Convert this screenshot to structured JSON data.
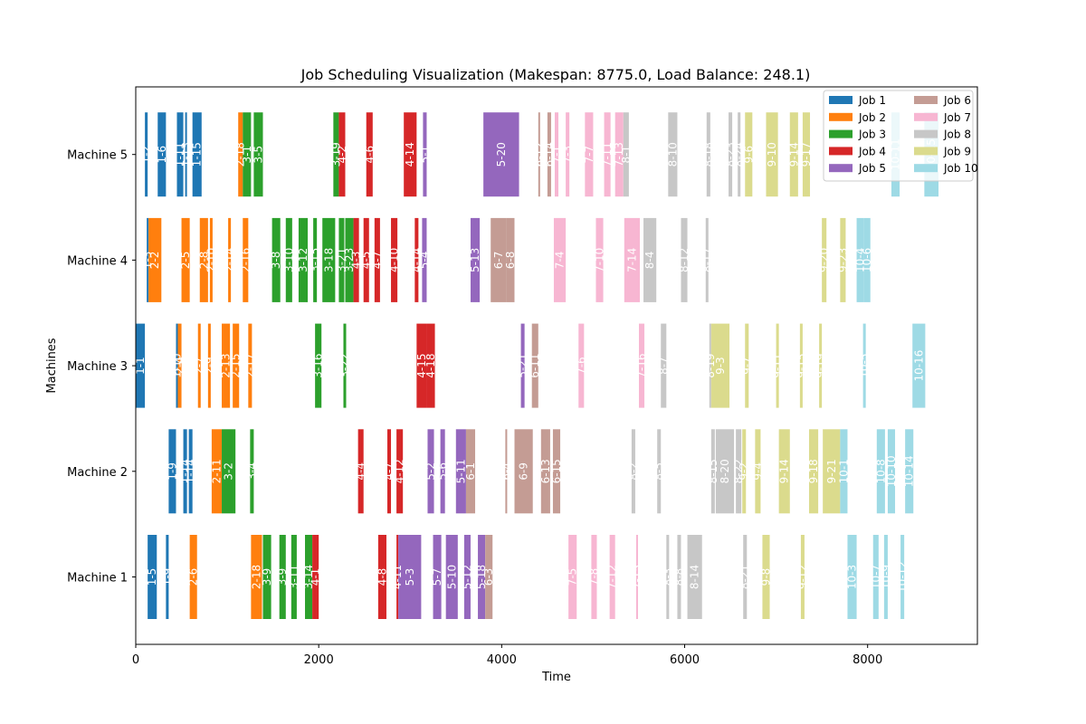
{
  "chart_data": {
    "type": "gantt",
    "title": "Job Scheduling Visualization (Makespan: 8775.0, Load Balance: 248.1)",
    "xlabel": "Time",
    "ylabel": "Machines",
    "xlim": [
      0,
      9200
    ],
    "x_ticks": [
      0,
      2000,
      4000,
      6000,
      8000
    ],
    "machines": [
      "Machine 1",
      "Machine 2",
      "Machine 3",
      "Machine 4",
      "Machine 5"
    ],
    "legend": {
      "placement": "top-right",
      "columns": 2,
      "entries": [
        "Job 1",
        "Job 2",
        "Job 3",
        "Job 4",
        "Job 5",
        "Job 6",
        "Job 7",
        "Job 8",
        "Job 9",
        "Job 10"
      ]
    },
    "job_colors": {
      "1": "#1f77b4",
      "2": "#ff7f0e",
      "3": "#2ca02c",
      "4": "#d62728",
      "5": "#9467bd",
      "6": "#c49c94",
      "7": "#f7b6d2",
      "8": "#c7c7c7",
      "9": "#dbdb8d",
      "10": "#9edae5"
    },
    "tasks": [
      {
        "machine": 1,
        "job": 1,
        "start": 130,
        "end": 230,
        "label": "1-5"
      },
      {
        "machine": 1,
        "job": 1,
        "start": 330,
        "end": 360,
        "label": "1-9"
      },
      {
        "machine": 1,
        "job": 2,
        "start": 590,
        "end": 670,
        "label": "2-6"
      },
      {
        "machine": 1,
        "job": 2,
        "start": 1260,
        "end": 1380,
        "label": "2-18"
      },
      {
        "machine": 1,
        "job": 3,
        "start": 1390,
        "end": 1480,
        "label": "3-9"
      },
      {
        "machine": 1,
        "job": 3,
        "start": 1570,
        "end": 1640,
        "label": "3-9"
      },
      {
        "machine": 1,
        "job": 3,
        "start": 1700,
        "end": 1760,
        "label": "3-11"
      },
      {
        "machine": 1,
        "job": 3,
        "start": 1850,
        "end": 1930,
        "label": "3-14"
      },
      {
        "machine": 1,
        "job": 4,
        "start": 1930,
        "end": 2000,
        "label": "4-1"
      },
      {
        "machine": 1,
        "job": 4,
        "start": 2650,
        "end": 2740,
        "label": "4-8"
      },
      {
        "machine": 1,
        "job": 4,
        "start": 2850,
        "end": 2870,
        "label": "4-11"
      },
      {
        "machine": 1,
        "job": 5,
        "start": 2870,
        "end": 3120,
        "label": "5-3"
      },
      {
        "machine": 1,
        "job": 5,
        "start": 3250,
        "end": 3340,
        "label": "5-7"
      },
      {
        "machine": 1,
        "job": 5,
        "start": 3390,
        "end": 3520,
        "label": "5-10"
      },
      {
        "machine": 1,
        "job": 5,
        "start": 3590,
        "end": 3660,
        "label": "5-12"
      },
      {
        "machine": 1,
        "job": 5,
        "start": 3740,
        "end": 3820,
        "label": "5-18"
      },
      {
        "machine": 1,
        "job": 6,
        "start": 3820,
        "end": 3900,
        "label": "6-3"
      },
      {
        "machine": 1,
        "job": 7,
        "start": 4730,
        "end": 4820,
        "label": "7-5"
      },
      {
        "machine": 1,
        "job": 7,
        "start": 4980,
        "end": 5040,
        "label": "7-8"
      },
      {
        "machine": 1,
        "job": 7,
        "start": 5180,
        "end": 5240,
        "label": "7-12"
      },
      {
        "machine": 1,
        "job": 7,
        "start": 5470,
        "end": 5490,
        "label": "7-15"
      },
      {
        "machine": 1,
        "job": 8,
        "start": 5800,
        "end": 5830,
        "label": "8-3"
      },
      {
        "machine": 1,
        "job": 8,
        "start": 5920,
        "end": 5960,
        "label": "8-8"
      },
      {
        "machine": 1,
        "job": 8,
        "start": 6030,
        "end": 6190,
        "label": "8-14"
      },
      {
        "machine": 1,
        "job": 8,
        "start": 6640,
        "end": 6680,
        "label": "8-21"
      },
      {
        "machine": 1,
        "job": 9,
        "start": 6850,
        "end": 6930,
        "label": "9-8"
      },
      {
        "machine": 1,
        "job": 9,
        "start": 7270,
        "end": 7310,
        "label": "9-12"
      },
      {
        "machine": 1,
        "job": 10,
        "start": 7780,
        "end": 7880,
        "label": "10-3"
      },
      {
        "machine": 1,
        "job": 10,
        "start": 8060,
        "end": 8120,
        "label": "10-7"
      },
      {
        "machine": 1,
        "job": 10,
        "start": 8180,
        "end": 8220,
        "label": "10-9"
      },
      {
        "machine": 1,
        "job": 10,
        "start": 8360,
        "end": 8400,
        "label": "10-12"
      },
      {
        "machine": 2,
        "job": 1,
        "start": 360,
        "end": 440,
        "label": "1-9"
      },
      {
        "machine": 2,
        "job": 1,
        "start": 520,
        "end": 560,
        "label": "1-14"
      },
      {
        "machine": 2,
        "job": 1,
        "start": 580,
        "end": 620,
        "label": "1-14"
      },
      {
        "machine": 2,
        "job": 2,
        "start": 830,
        "end": 940,
        "label": "2-11"
      },
      {
        "machine": 2,
        "job": 3,
        "start": 940,
        "end": 1090,
        "label": "3-2"
      },
      {
        "machine": 2,
        "job": 3,
        "start": 1250,
        "end": 1290,
        "label": "3-4"
      },
      {
        "machine": 2,
        "job": 4,
        "start": 2430,
        "end": 2490,
        "label": "4-4"
      },
      {
        "machine": 2,
        "job": 4,
        "start": 2750,
        "end": 2790,
        "label": "4-7"
      },
      {
        "machine": 2,
        "job": 4,
        "start": 2850,
        "end": 2920,
        "label": "4-12"
      },
      {
        "machine": 2,
        "job": 5,
        "start": 3190,
        "end": 3260,
        "label": "5-2"
      },
      {
        "machine": 2,
        "job": 5,
        "start": 3330,
        "end": 3380,
        "label": "5-6"
      },
      {
        "machine": 2,
        "job": 5,
        "start": 3500,
        "end": 3610,
        "label": "5-11"
      },
      {
        "machine": 2,
        "job": 6,
        "start": 3610,
        "end": 3710,
        "label": "6-1"
      },
      {
        "machine": 2,
        "job": 6,
        "start": 4040,
        "end": 4060,
        "label": "6-4"
      },
      {
        "machine": 2,
        "job": 6,
        "start": 4140,
        "end": 4340,
        "label": "6-9"
      },
      {
        "machine": 2,
        "job": 6,
        "start": 4430,
        "end": 4530,
        "label": "6-13"
      },
      {
        "machine": 2,
        "job": 6,
        "start": 4560,
        "end": 4640,
        "label": "6-15"
      },
      {
        "machine": 2,
        "job": 8,
        "start": 5420,
        "end": 5460,
        "label": "8-2"
      },
      {
        "machine": 2,
        "job": 8,
        "start": 5700,
        "end": 5740,
        "label": "8-5"
      },
      {
        "machine": 2,
        "job": 8,
        "start": 6290,
        "end": 6330,
        "label": "8-15"
      },
      {
        "machine": 2,
        "job": 8,
        "start": 6340,
        "end": 6540,
        "label": "8-20"
      },
      {
        "machine": 2,
        "job": 8,
        "start": 6560,
        "end": 6620,
        "label": "8-22"
      },
      {
        "machine": 2,
        "job": 9,
        "start": 6630,
        "end": 6670,
        "label": "9-2"
      },
      {
        "machine": 2,
        "job": 9,
        "start": 6770,
        "end": 6830,
        "label": "9-4"
      },
      {
        "machine": 2,
        "job": 9,
        "start": 7030,
        "end": 7150,
        "label": "9-14"
      },
      {
        "machine": 2,
        "job": 9,
        "start": 7360,
        "end": 7460,
        "label": "9-18"
      },
      {
        "machine": 2,
        "job": 9,
        "start": 7510,
        "end": 7700,
        "label": "9-21"
      },
      {
        "machine": 2,
        "job": 10,
        "start": 7700,
        "end": 7780,
        "label": "10-1"
      },
      {
        "machine": 2,
        "job": 10,
        "start": 8100,
        "end": 8190,
        "label": "10-8"
      },
      {
        "machine": 2,
        "job": 10,
        "start": 8220,
        "end": 8300,
        "label": "10-10"
      },
      {
        "machine": 2,
        "job": 10,
        "start": 8410,
        "end": 8500,
        "label": "10-14"
      },
      {
        "machine": 3,
        "job": 1,
        "start": 0,
        "end": 100,
        "label": "1-1"
      },
      {
        "machine": 3,
        "job": 1,
        "start": 440,
        "end": 460,
        "label": "1-10"
      },
      {
        "machine": 3,
        "job": 2,
        "start": 460,
        "end": 500,
        "label": "2-4"
      },
      {
        "machine": 3,
        "job": 2,
        "start": 680,
        "end": 710,
        "label": "2-7"
      },
      {
        "machine": 3,
        "job": 2,
        "start": 790,
        "end": 820,
        "label": "2-9"
      },
      {
        "machine": 3,
        "job": 2,
        "start": 940,
        "end": 1030,
        "label": "2-13"
      },
      {
        "machine": 3,
        "job": 2,
        "start": 1060,
        "end": 1130,
        "label": "2-15"
      },
      {
        "machine": 3,
        "job": 2,
        "start": 1230,
        "end": 1270,
        "label": "2-17"
      },
      {
        "machine": 3,
        "job": 3,
        "start": 1960,
        "end": 2030,
        "label": "3-16"
      },
      {
        "machine": 3,
        "job": 3,
        "start": 2270,
        "end": 2300,
        "label": "3-22"
      },
      {
        "machine": 3,
        "job": 4,
        "start": 3070,
        "end": 3180,
        "label": "4-15"
      },
      {
        "machine": 3,
        "job": 4,
        "start": 3180,
        "end": 3270,
        "label": "4-18"
      },
      {
        "machine": 3,
        "job": 5,
        "start": 4210,
        "end": 4250,
        "label": "5-21"
      },
      {
        "machine": 3,
        "job": 6,
        "start": 4330,
        "end": 4400,
        "label": "6-11"
      },
      {
        "machine": 3,
        "job": 7,
        "start": 4840,
        "end": 4900,
        "label": "7-6"
      },
      {
        "machine": 3,
        "job": 7,
        "start": 5500,
        "end": 5560,
        "label": "7-16"
      },
      {
        "machine": 3,
        "job": 8,
        "start": 5740,
        "end": 5800,
        "label": "8-7"
      },
      {
        "machine": 3,
        "job": 8,
        "start": 6270,
        "end": 6290,
        "label": "8-19"
      },
      {
        "machine": 3,
        "job": 9,
        "start": 6290,
        "end": 6490,
        "label": "9-3"
      },
      {
        "machine": 3,
        "job": 9,
        "start": 6660,
        "end": 6700,
        "label": "9-7"
      },
      {
        "machine": 3,
        "job": 9,
        "start": 7000,
        "end": 7030,
        "label": "9-11"
      },
      {
        "machine": 3,
        "job": 9,
        "start": 7260,
        "end": 7290,
        "label": "9-15"
      },
      {
        "machine": 3,
        "job": 9,
        "start": 7470,
        "end": 7500,
        "label": "9-19"
      },
      {
        "machine": 3,
        "job": 10,
        "start": 7950,
        "end": 7980,
        "label": "10-5"
      },
      {
        "machine": 3,
        "job": 10,
        "start": 8490,
        "end": 8630,
        "label": "10-16"
      },
      {
        "machine": 4,
        "job": 1,
        "start": 120,
        "end": 140,
        "label": "1-3"
      },
      {
        "machine": 4,
        "job": 2,
        "start": 140,
        "end": 280,
        "label": "2-2"
      },
      {
        "machine": 4,
        "job": 2,
        "start": 500,
        "end": 590,
        "label": "2-5"
      },
      {
        "machine": 4,
        "job": 2,
        "start": 700,
        "end": 790,
        "label": "2-8"
      },
      {
        "machine": 4,
        "job": 2,
        "start": 810,
        "end": 840,
        "label": "2-10"
      },
      {
        "machine": 4,
        "job": 2,
        "start": 1010,
        "end": 1040,
        "label": "2-14"
      },
      {
        "machine": 4,
        "job": 2,
        "start": 1170,
        "end": 1230,
        "label": "2-16"
      },
      {
        "machine": 4,
        "job": 3,
        "start": 1490,
        "end": 1580,
        "label": "3-8"
      },
      {
        "machine": 4,
        "job": 3,
        "start": 1640,
        "end": 1710,
        "label": "3-10"
      },
      {
        "machine": 4,
        "job": 3,
        "start": 1780,
        "end": 1880,
        "label": "3-12"
      },
      {
        "machine": 4,
        "job": 3,
        "start": 1940,
        "end": 1980,
        "label": "3-15"
      },
      {
        "machine": 4,
        "job": 3,
        "start": 2040,
        "end": 2180,
        "label": "3-18"
      },
      {
        "machine": 4,
        "job": 3,
        "start": 2220,
        "end": 2280,
        "label": "3-21"
      },
      {
        "machine": 4,
        "job": 3,
        "start": 2290,
        "end": 2380,
        "label": "3-23"
      },
      {
        "machine": 4,
        "job": 4,
        "start": 2380,
        "end": 2440,
        "label": "4-3"
      },
      {
        "machine": 4,
        "job": 4,
        "start": 2490,
        "end": 2550,
        "label": "4-5"
      },
      {
        "machine": 4,
        "job": 4,
        "start": 2610,
        "end": 2670,
        "label": "4-7"
      },
      {
        "machine": 4,
        "job": 4,
        "start": 2790,
        "end": 2860,
        "label": "4-10"
      },
      {
        "machine": 4,
        "job": 4,
        "start": 3050,
        "end": 3090,
        "label": "4-14"
      },
      {
        "machine": 4,
        "job": 5,
        "start": 3130,
        "end": 3180,
        "label": "5-4"
      },
      {
        "machine": 4,
        "job": 5,
        "start": 3660,
        "end": 3760,
        "label": "5-13"
      },
      {
        "machine": 4,
        "job": 6,
        "start": 3880,
        "end": 4050,
        "label": "6-7"
      },
      {
        "machine": 4,
        "job": 6,
        "start": 4050,
        "end": 4140,
        "label": "6-8"
      },
      {
        "machine": 4,
        "job": 7,
        "start": 4570,
        "end": 4700,
        "label": "7-4"
      },
      {
        "machine": 4,
        "job": 7,
        "start": 5030,
        "end": 5110,
        "label": "7-10"
      },
      {
        "machine": 4,
        "job": 7,
        "start": 5340,
        "end": 5510,
        "label": "7-14"
      },
      {
        "machine": 4,
        "job": 8,
        "start": 5550,
        "end": 5690,
        "label": "8-4"
      },
      {
        "machine": 4,
        "job": 8,
        "start": 5960,
        "end": 6030,
        "label": "8-12"
      },
      {
        "machine": 4,
        "job": 8,
        "start": 6230,
        "end": 6260,
        "label": "8-17"
      },
      {
        "machine": 4,
        "job": 9,
        "start": 7500,
        "end": 7550,
        "label": "9-20"
      },
      {
        "machine": 4,
        "job": 9,
        "start": 7700,
        "end": 7760,
        "label": "9-23"
      },
      {
        "machine": 4,
        "job": 10,
        "start": 7880,
        "end": 7960,
        "label": "10-4"
      },
      {
        "machine": 4,
        "job": 10,
        "start": 7960,
        "end": 8030,
        "label": "10-6"
      },
      {
        "machine": 5,
        "job": 1,
        "start": 100,
        "end": 130,
        "label": "1-2"
      },
      {
        "machine": 5,
        "job": 1,
        "start": 240,
        "end": 330,
        "label": "1-6"
      },
      {
        "machine": 5,
        "job": 1,
        "start": 450,
        "end": 520,
        "label": "1-11"
      },
      {
        "machine": 5,
        "job": 1,
        "start": 540,
        "end": 560,
        "label": "1-13"
      },
      {
        "machine": 5,
        "job": 1,
        "start": 620,
        "end": 720,
        "label": "1-15"
      },
      {
        "machine": 5,
        "job": 2,
        "start": 1120,
        "end": 1170,
        "label": "2-18"
      },
      {
        "machine": 5,
        "job": 3,
        "start": 1170,
        "end": 1260,
        "label": "3-1"
      },
      {
        "machine": 5,
        "job": 3,
        "start": 1290,
        "end": 1390,
        "label": "3-5"
      },
      {
        "machine": 5,
        "job": 3,
        "start": 2160,
        "end": 2220,
        "label": "3-19"
      },
      {
        "machine": 5,
        "job": 4,
        "start": 2220,
        "end": 2290,
        "label": "4-2"
      },
      {
        "machine": 5,
        "job": 4,
        "start": 2520,
        "end": 2590,
        "label": "4-6"
      },
      {
        "machine": 5,
        "job": 4,
        "start": 2930,
        "end": 3070,
        "label": "4-14"
      },
      {
        "machine": 5,
        "job": 5,
        "start": 3140,
        "end": 3180,
        "label": "5-1"
      },
      {
        "machine": 5,
        "job": 5,
        "start": 3800,
        "end": 4190,
        "label": "5-20"
      },
      {
        "machine": 5,
        "job": 6,
        "start": 4400,
        "end": 4420,
        "label": "6-12"
      },
      {
        "machine": 5,
        "job": 6,
        "start": 4500,
        "end": 4540,
        "label": "6-14"
      },
      {
        "machine": 5,
        "job": 7,
        "start": 4580,
        "end": 4620,
        "label": "7-1"
      },
      {
        "machine": 5,
        "job": 7,
        "start": 4700,
        "end": 4740,
        "label": "7-3"
      },
      {
        "machine": 5,
        "job": 7,
        "start": 4910,
        "end": 5000,
        "label": "7-7"
      },
      {
        "machine": 5,
        "job": 7,
        "start": 5120,
        "end": 5190,
        "label": "7-11"
      },
      {
        "machine": 5,
        "job": 7,
        "start": 5240,
        "end": 5330,
        "label": "7-13"
      },
      {
        "machine": 5,
        "job": 8,
        "start": 5330,
        "end": 5390,
        "label": "8-1"
      },
      {
        "machine": 5,
        "job": 8,
        "start": 5820,
        "end": 5920,
        "label": "8-10"
      },
      {
        "machine": 5,
        "job": 8,
        "start": 6240,
        "end": 6280,
        "label": "8-18"
      },
      {
        "machine": 5,
        "job": 8,
        "start": 6480,
        "end": 6520,
        "label": "8-23"
      },
      {
        "machine": 5,
        "job": 8,
        "start": 6580,
        "end": 6610,
        "label": "8-24"
      },
      {
        "machine": 5,
        "job": 9,
        "start": 6660,
        "end": 6740,
        "label": "9-6"
      },
      {
        "machine": 5,
        "job": 9,
        "start": 6890,
        "end": 7020,
        "label": "9-10"
      },
      {
        "machine": 5,
        "job": 9,
        "start": 7150,
        "end": 7240,
        "label": "9-14"
      },
      {
        "machine": 5,
        "job": 9,
        "start": 7290,
        "end": 7370,
        "label": "9-17"
      },
      {
        "machine": 5,
        "job": 10,
        "start": 8260,
        "end": 8350,
        "label": "10-11"
      },
      {
        "machine": 5,
        "job": 10,
        "start": 8620,
        "end": 8775,
        "label": "10-15"
      }
    ]
  }
}
